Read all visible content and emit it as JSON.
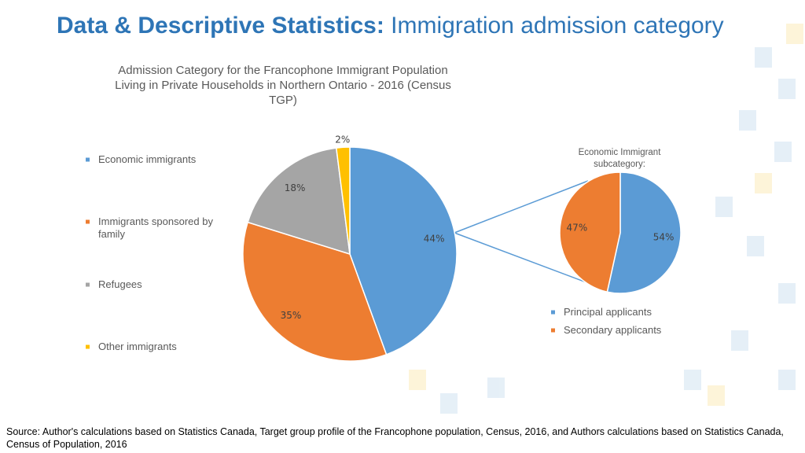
{
  "slide": {
    "title_bold": "Data & Descriptive Statistics:",
    "title_rest": "Immigration admission category"
  },
  "chart_data": [
    {
      "type": "pie",
      "title": "Admission Category for the Francophone Immigrant Population Living in Private Households in Northern Ontario - 2016 (Census TGP)",
      "categories": [
        "Economic immigrants",
        "Immigrants sponsored by family",
        "Refugees",
        "Other immigrants"
      ],
      "values": [
        44,
        35,
        18,
        2
      ],
      "value_labels": [
        "44%",
        "35%",
        "18%",
        "2%"
      ],
      "colors": [
        "#5b9bd5",
        "#ed7d31",
        "#a5a5a5",
        "#ffc000"
      ],
      "legend": "left"
    },
    {
      "type": "pie",
      "title": "Economic Immigrant subcategory:",
      "categories": [
        "Principal applicants",
        "Secondary applicants"
      ],
      "values": [
        54,
        47
      ],
      "value_labels": [
        "54%",
        "47%"
      ],
      "colors": [
        "#5b9bd5",
        "#ed7d31"
      ],
      "legend": "bottom"
    }
  ],
  "source": "Source: Author's calculations based on Statistics Canada, Target group profile of the Francophone population, Census, 2016, and Authors calculations based on Statistics Canada, Census of Population, 2016"
}
